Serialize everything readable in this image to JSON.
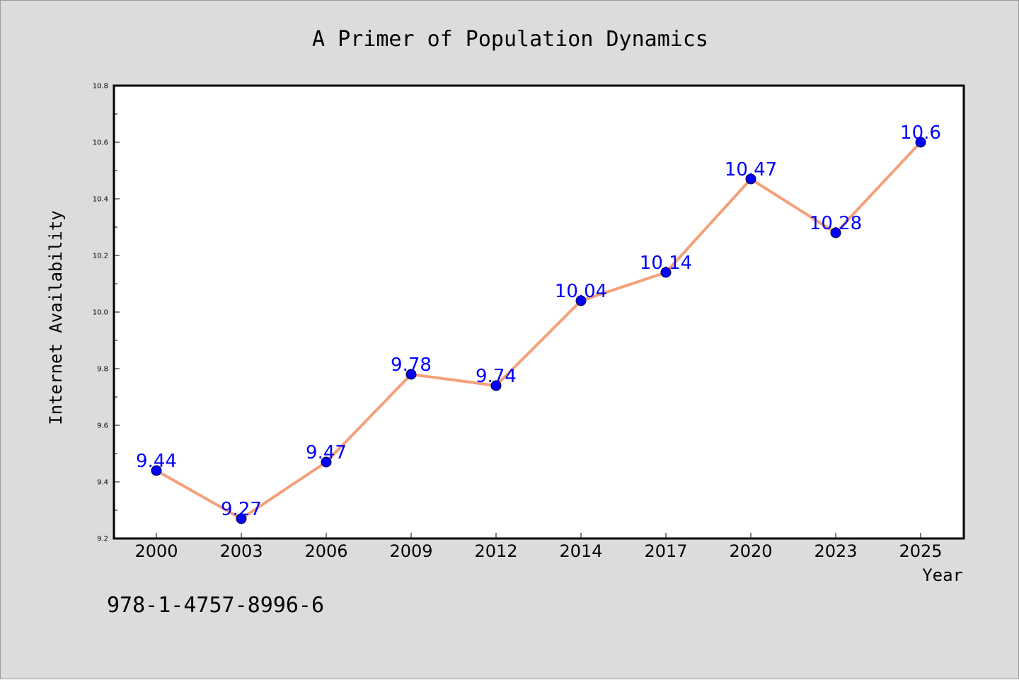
{
  "chart_data": {
    "type": "line",
    "title": "A Primer of Population Dynamics",
    "xlabel": "Year",
    "ylabel": "Internet Availability",
    "categories": [
      "2000",
      "2003",
      "2006",
      "2009",
      "2012",
      "2014",
      "2017",
      "2020",
      "2023",
      "2025"
    ],
    "series": [
      {
        "values": [
          9.44,
          9.27,
          9.47,
          9.78,
          9.74,
          10.04,
          10.14,
          10.47,
          10.28,
          10.6
        ]
      }
    ],
    "data_labels": [
      "9.44",
      "9.27",
      "9.47",
      "9.78",
      "9.74",
      "10.04",
      "10.14",
      "10.47",
      "10.28",
      "10.6"
    ],
    "ylim": [
      9.2,
      10.8
    ],
    "yticks": [
      "9.2",
      "9.4",
      "9.6",
      "9.8",
      "10.0",
      "10.2",
      "10.4",
      "10.6",
      "10.8"
    ],
    "grid": false,
    "legend": "none"
  },
  "footer": {
    "isbn": "978-1-4757-8996-6"
  },
  "colors": {
    "background": "#dcdcdc",
    "plot_area": "#ffffff",
    "line": "#f4a07a",
    "marker": "#0000ff",
    "data_label": "#0000ff"
  }
}
